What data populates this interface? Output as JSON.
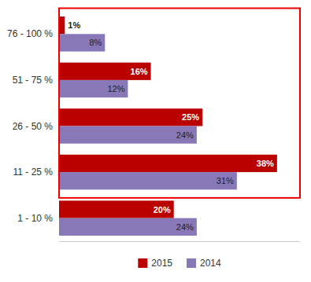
{
  "chart_data": {
    "type": "bar",
    "orientation": "horizontal",
    "categories": [
      "76 - 100 %",
      "51 - 75 %",
      "26 - 50 %",
      "11 - 25 %",
      "1 - 10 %"
    ],
    "series": [
      {
        "name": "2015",
        "color": "#bb0000",
        "values": [
          1,
          16,
          25,
          38,
          20
        ],
        "value_labels": [
          "1%",
          "16%",
          "25%",
          "38%",
          "20%"
        ]
      },
      {
        "name": "2014",
        "color": "#8878b8",
        "values": [
          8,
          12,
          24,
          31,
          24
        ],
        "value_labels": [
          "8%",
          "12%",
          "24%",
          "31%",
          "24%"
        ]
      }
    ],
    "xlim": [
      0,
      42
    ],
    "data_labels": true,
    "tick_labels": "y",
    "legend": "bottom",
    "grid": false
  }
}
